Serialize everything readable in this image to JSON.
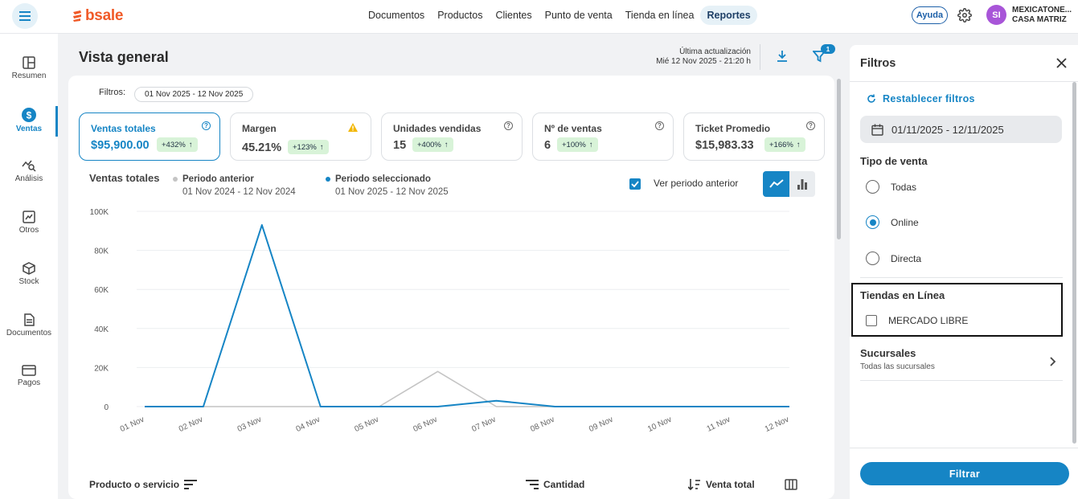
{
  "app": {
    "brand": "bsale",
    "nav": [
      "Documentos",
      "Productos",
      "Clientes",
      "Punto de venta",
      "Tienda en línea",
      "Reportes"
    ],
    "nav_active": "Reportes",
    "help_label": "Ayuda",
    "avatar_initials": "SI",
    "company_line1": "MEXICATONE...",
    "company_line2": "CASA MATRIZ",
    "accent_color": "#1685c5"
  },
  "sidebar": {
    "items": [
      {
        "label": "Resumen",
        "icon": "layout-icon"
      },
      {
        "label": "Ventas",
        "icon": "dollar-icon",
        "active": true
      },
      {
        "label": "Análisis",
        "icon": "chart-search-icon"
      },
      {
        "label": "Otros",
        "icon": "trend-icon"
      },
      {
        "label": "Stock",
        "icon": "box-icon"
      },
      {
        "label": "Documentos",
        "icon": "document-icon"
      },
      {
        "label": "Pagos",
        "icon": "card-icon"
      }
    ]
  },
  "header": {
    "title": "Vista general",
    "last_update_label": "Última actualización",
    "last_update_value": "Mié 12 Nov 2025 - 21:20 h",
    "filter_badge": "1"
  },
  "filters_row": {
    "label": "Filtros:",
    "date_range": "01 Nov 2025 - 12 Nov 2025"
  },
  "kpis": [
    {
      "title": "Ventas totales",
      "value": "$95,900.00",
      "change": "+432%",
      "active": true,
      "info": "help"
    },
    {
      "title": "Margen",
      "value": "45.21%",
      "change": "+123%",
      "info": "warning"
    },
    {
      "title": "Unidades vendidas",
      "value": "15",
      "change": "+400%",
      "info": "help"
    },
    {
      "title": "Nº de ventas",
      "value": "6",
      "change": "+100%",
      "info": "help"
    },
    {
      "title": "Ticket Promedio",
      "value": "$15,983.33",
      "change": "+166%",
      "info": "help"
    }
  ],
  "chart_header": {
    "title": "Ventas totales",
    "prev_label": "Periodo anterior",
    "prev_range": "01 Nov 2024 - 12 Nov 2024",
    "sel_label": "Periodo seleccionado",
    "sel_range": "01 Nov 2025 - 12 Nov 2025",
    "show_prev_label": "Ver periodo anterior",
    "show_prev_checked": true
  },
  "chart_data": {
    "type": "line",
    "categories": [
      "01 Nov",
      "02 Nov",
      "03 Nov",
      "04 Nov",
      "05 Nov",
      "06 Nov",
      "07 Nov",
      "08 Nov",
      "09 Nov",
      "10 Nov",
      "11 Nov",
      "12 Nov"
    ],
    "y_ticks": [
      "0",
      "20K",
      "40K",
      "60K",
      "80K",
      "100K"
    ],
    "ylim": [
      0,
      100000
    ],
    "grid": true,
    "series": [
      {
        "name": "Periodo anterior",
        "color": "#c4c4c4",
        "values": [
          0,
          0,
          0,
          0,
          0,
          18000,
          0,
          0,
          0,
          0,
          0,
          0
        ]
      },
      {
        "name": "Periodo seleccionado",
        "color": "#1685c5",
        "values": [
          0,
          0,
          93000,
          0,
          0,
          0,
          3000,
          0,
          0,
          0,
          0,
          0
        ]
      }
    ]
  },
  "table_header": {
    "col_product": "Producto o servicio",
    "col_qty": "Cantidad",
    "col_total": "Venta total"
  },
  "filter_panel": {
    "title": "Filtros",
    "reset_label": "Restablecer filtros",
    "date_value": "01/11/2025 - 12/11/2025",
    "sale_type_title": "Tipo de venta",
    "sale_types": [
      "Todas",
      "Online",
      "Directa"
    ],
    "sale_type_selected": "Online",
    "stores_title": "Tiendas en Línea",
    "stores": [
      "MERCADO LIBRE"
    ],
    "branches_title": "Sucursales",
    "branches_value": "Todas las sucursales",
    "submit_label": "Filtrar"
  }
}
